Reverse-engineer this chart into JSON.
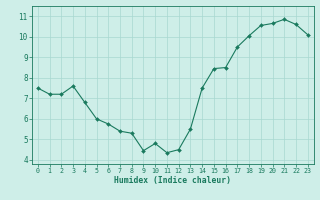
{
  "x": [
    0,
    1,
    2,
    3,
    4,
    5,
    6,
    7,
    8,
    9,
    10,
    11,
    12,
    13,
    14,
    15,
    16,
    17,
    18,
    19,
    20,
    21,
    22,
    23
  ],
  "y": [
    7.5,
    7.2,
    7.2,
    7.6,
    6.8,
    6.0,
    5.75,
    5.4,
    5.3,
    4.45,
    4.8,
    4.35,
    4.5,
    5.5,
    7.5,
    8.45,
    8.5,
    9.5,
    10.05,
    10.55,
    10.65,
    10.85,
    10.6,
    10.1
  ],
  "line_color": "#1a7a5e",
  "marker_color": "#1a7a5e",
  "bg_color": "#ceeee8",
  "grid_color": "#a8d8d0",
  "axis_color": "#1a7a5e",
  "xlabel": "Humidex (Indice chaleur)",
  "xlim": [
    -0.5,
    23.5
  ],
  "ylim": [
    3.8,
    11.5
  ],
  "yticks": [
    4,
    5,
    6,
    7,
    8,
    9,
    10,
    11
  ],
  "xticks": [
    0,
    1,
    2,
    3,
    4,
    5,
    6,
    7,
    8,
    9,
    10,
    11,
    12,
    13,
    14,
    15,
    16,
    17,
    18,
    19,
    20,
    21,
    22,
    23
  ]
}
